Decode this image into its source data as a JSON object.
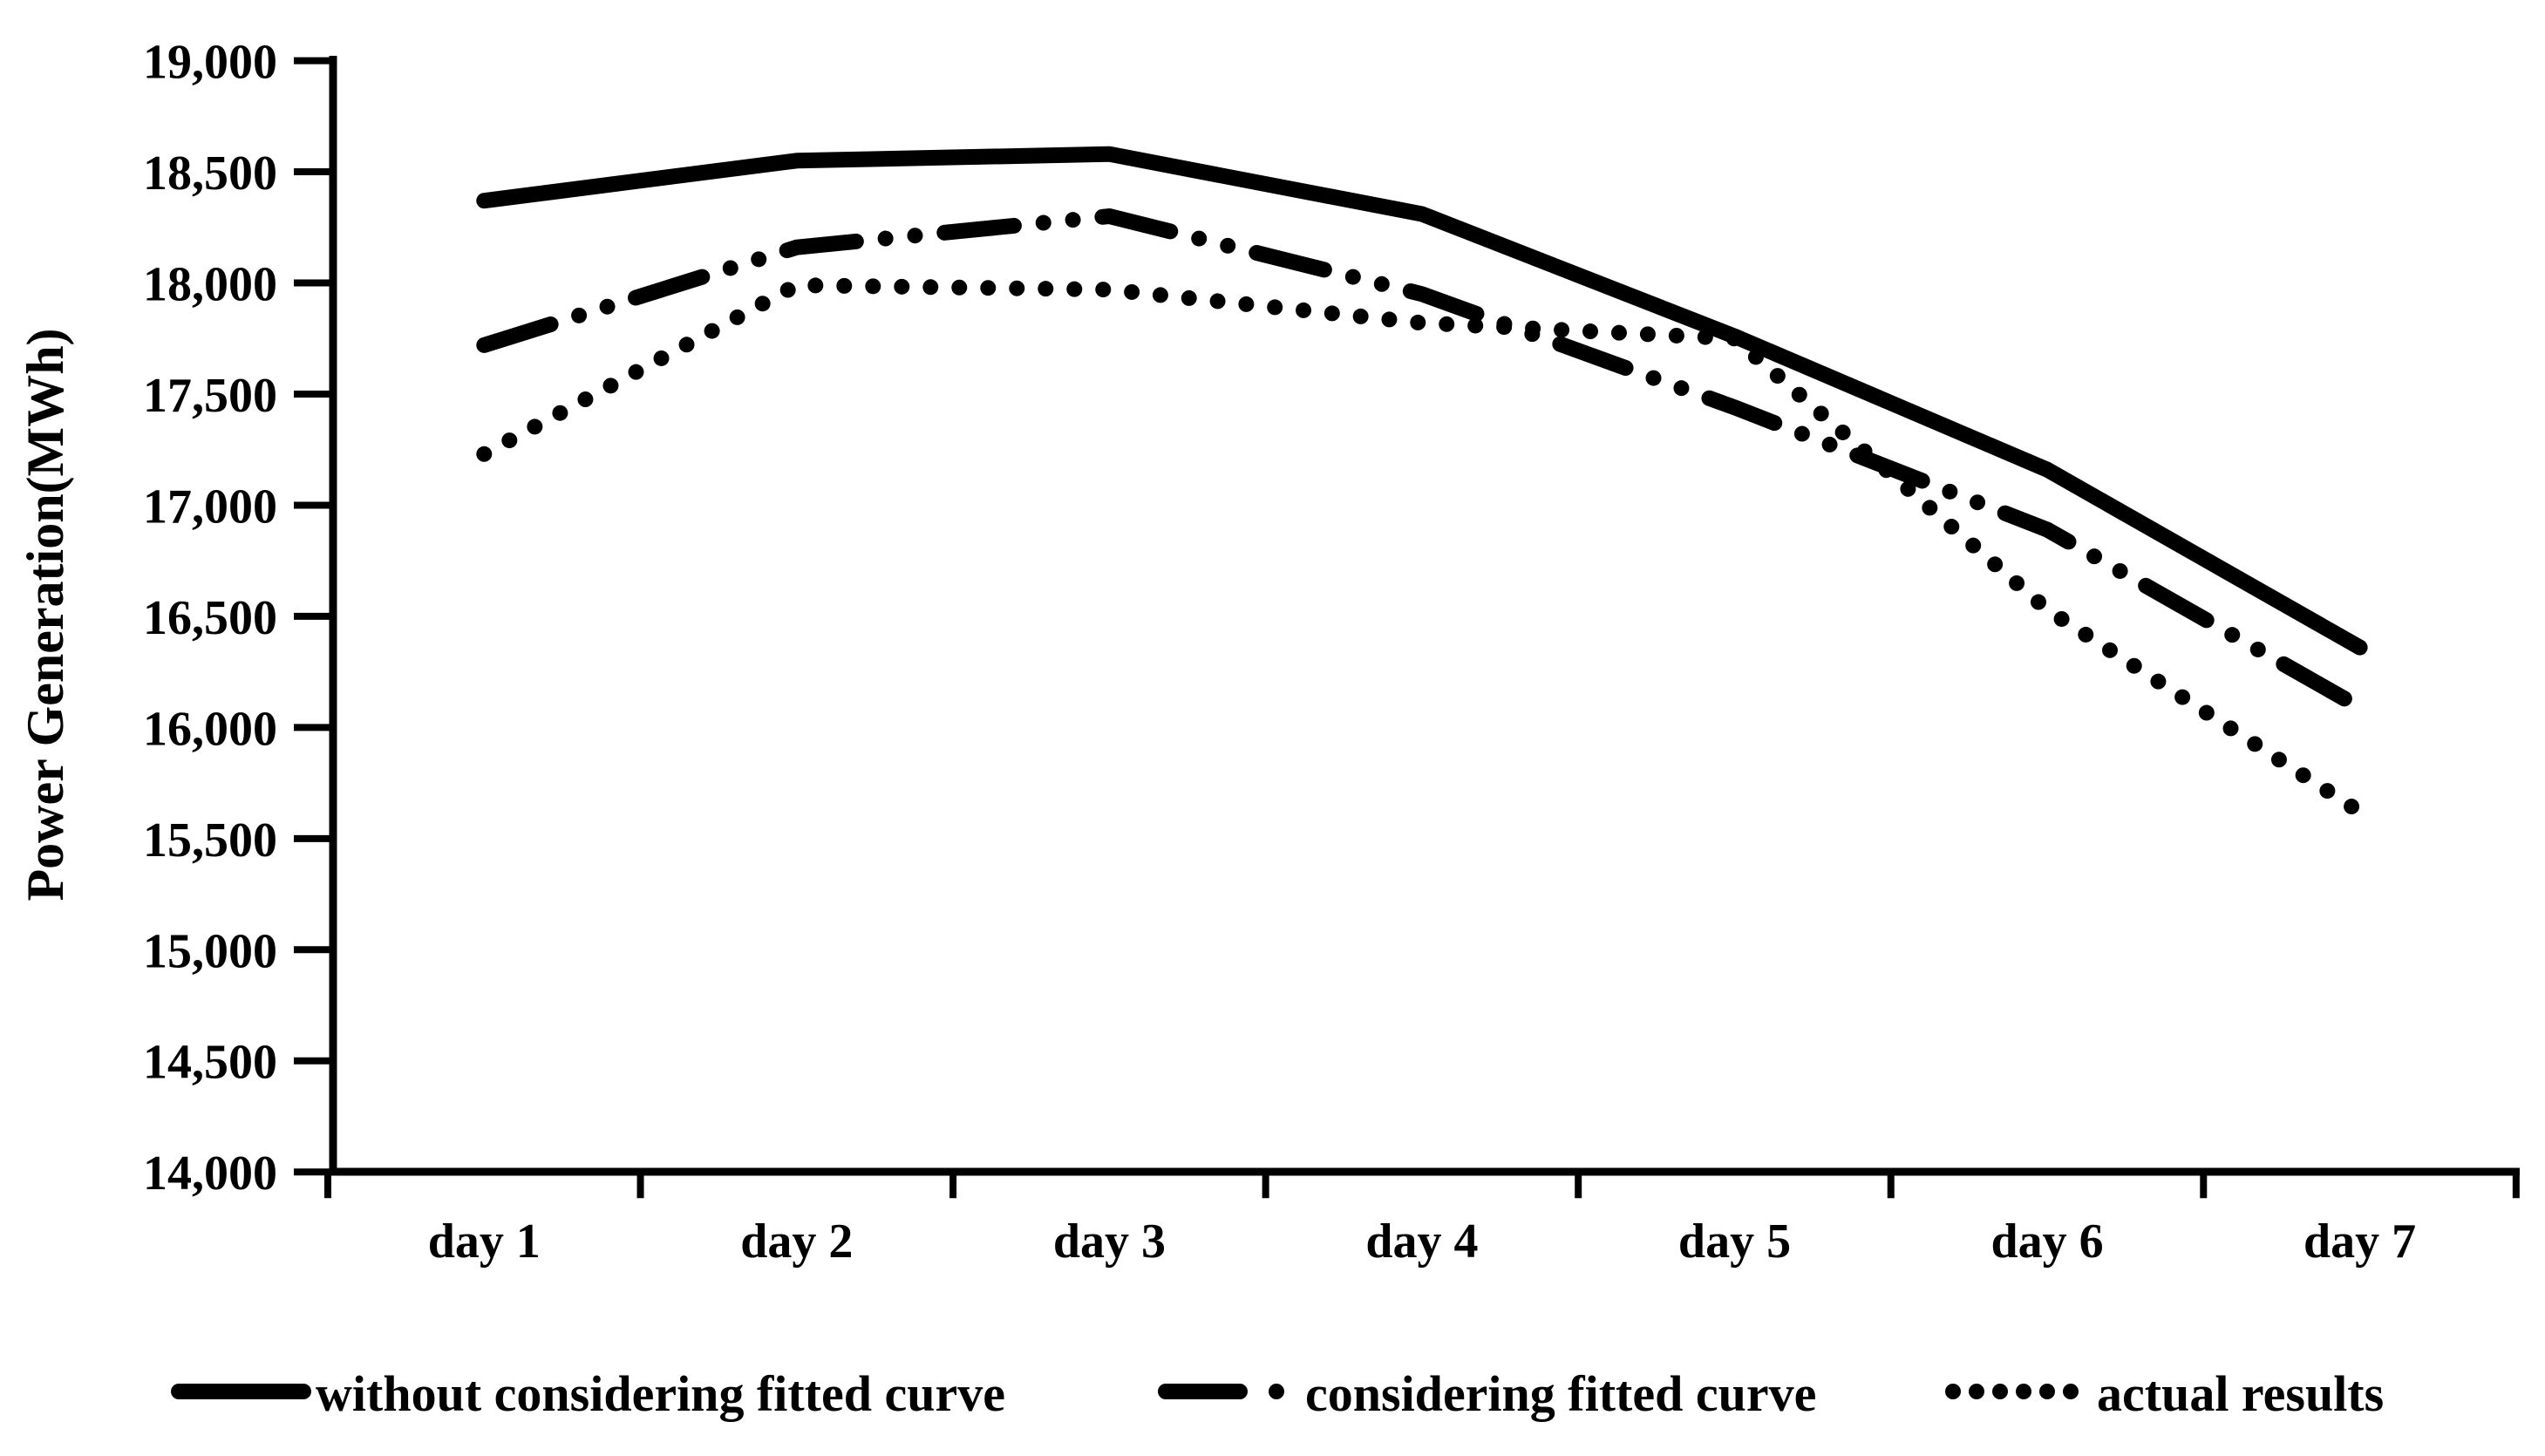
{
  "chart_data": {
    "type": "line",
    "title": "",
    "xlabel": "",
    "ylabel": "Power Generation(MWh)",
    "categories": [
      "day 1",
      "day 2",
      "day 3",
      "day 4",
      "day 5",
      "day 6",
      "day 7"
    ],
    "ylim": [
      14000,
      19000
    ],
    "ytick_step": 500,
    "ytick_labels": [
      "14,000",
      "14,500",
      "15,000",
      "15,500",
      "16,000",
      "16,500",
      "17,000",
      "17,500",
      "18,000",
      "18,500",
      "19,000"
    ],
    "grid": false,
    "legend_position": "bottom",
    "series": [
      {
        "name": "without considering fitted curve",
        "style": "solid",
        "values": [
          18370,
          18550,
          18580,
          18310,
          17760,
          17160,
          16360
        ]
      },
      {
        "name": "considering fitted curve",
        "style": "dash-dot-dot",
        "values": [
          17720,
          18160,
          18300,
          17950,
          17440,
          16890,
          16090
        ]
      },
      {
        "name": "actual results",
        "style": "dotted",
        "values": [
          17230,
          17990,
          17970,
          17820,
          17750,
          16530,
          15620
        ]
      }
    ]
  },
  "colors": {
    "line": "#000000",
    "background": "#ffffff"
  }
}
